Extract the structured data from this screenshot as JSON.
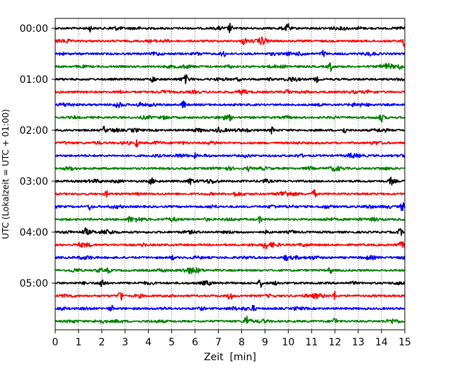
{
  "chart_data": {
    "type": "line",
    "title": "",
    "xlabel": "Zeit  [min]",
    "ylabel": "UTC (Lokalzeit = UTC + 01:00)",
    "x_ticks": [
      0,
      1,
      2,
      3,
      4,
      5,
      6,
      7,
      8,
      9,
      10,
      11,
      12,
      13,
      14,
      15
    ],
    "x_tick_labels": [
      "0",
      "1",
      "2",
      "3",
      "4",
      "5",
      "6",
      "7",
      "8",
      "9",
      "10",
      "11",
      "12",
      "13",
      "14",
      "15"
    ],
    "xlim": [
      0,
      15
    ],
    "y_tick_labels": [
      "00:00",
      "01:00",
      "02:00",
      "03:00",
      "04:00",
      "05:00"
    ],
    "grid": "vertical dotted at each minute",
    "trace_colors": [
      "#000000",
      "#ff0000",
      "#0000ff",
      "#008000"
    ],
    "row_times": [
      "00:00",
      "00:15",
      "00:30",
      "00:45",
      "01:00",
      "01:15",
      "01:30",
      "01:45",
      "02:00",
      "02:15",
      "02:30",
      "02:45",
      "03:00",
      "03:15",
      "03:30",
      "03:45",
      "04:00",
      "04:15",
      "04:30",
      "04:45",
      "05:00",
      "05:15",
      "05:30",
      "05:45"
    ],
    "row_colors": [
      "black",
      "red",
      "blue",
      "green",
      "black",
      "red",
      "blue",
      "green",
      "black",
      "red",
      "blue",
      "green",
      "black",
      "red",
      "blue",
      "green",
      "black",
      "red",
      "blue",
      "green",
      "black",
      "red",
      "blue",
      "green"
    ],
    "events": [
      {
        "row": 0,
        "x": 1.5,
        "a": 0.6
      },
      {
        "row": 0,
        "x": 7.5,
        "a": 1.0
      },
      {
        "row": 0,
        "x": 10.0,
        "a": 0.9
      },
      {
        "row": 1,
        "x": 8.1,
        "a": 0.8
      },
      {
        "row": 1,
        "x": 14.95,
        "a": 1.1
      },
      {
        "row": 2,
        "x": 7.2,
        "a": 0.9
      },
      {
        "row": 2,
        "x": 11.5,
        "a": 0.8
      },
      {
        "row": 3,
        "x": 11.8,
        "a": 1.0
      },
      {
        "row": 3,
        "x": 14.8,
        "a": 0.6
      },
      {
        "row": 4,
        "x": 4.2,
        "a": 0.8
      },
      {
        "row": 4,
        "x": 5.6,
        "a": 0.7
      },
      {
        "row": 4,
        "x": 11.2,
        "a": 0.6
      },
      {
        "row": 5,
        "x": 10.0,
        "a": 0.9
      },
      {
        "row": 6,
        "x": 3.6,
        "a": 0.6
      },
      {
        "row": 6,
        "x": 5.5,
        "a": 0.8
      },
      {
        "row": 7,
        "x": 7.5,
        "a": 0.5
      },
      {
        "row": 7,
        "x": 14.0,
        "a": 0.6
      },
      {
        "row": 8,
        "x": 2.1,
        "a": 0.7
      },
      {
        "row": 8,
        "x": 7.0,
        "a": 0.5
      },
      {
        "row": 8,
        "x": 9.3,
        "a": 0.7
      },
      {
        "row": 8,
        "x": 12.4,
        "a": 0.6
      },
      {
        "row": 9,
        "x": 3.5,
        "a": 0.8
      },
      {
        "row": 10,
        "x": 6.0,
        "a": 0.4
      },
      {
        "row": 11,
        "x": 8.3,
        "a": 0.5
      },
      {
        "row": 12,
        "x": 4.1,
        "a": 0.6
      },
      {
        "row": 12,
        "x": 5.8,
        "a": 0.8
      },
      {
        "row": 12,
        "x": 14.4,
        "a": 0.7
      },
      {
        "row": 13,
        "x": 2.2,
        "a": 0.6
      },
      {
        "row": 13,
        "x": 11.1,
        "a": 0.9
      },
      {
        "row": 14,
        "x": 1.5,
        "a": 0.8
      },
      {
        "row": 14,
        "x": 14.9,
        "a": 1.0
      },
      {
        "row": 15,
        "x": 3.2,
        "a": 0.6
      },
      {
        "row": 15,
        "x": 8.8,
        "a": 0.7
      },
      {
        "row": 16,
        "x": 1.3,
        "a": 0.6
      },
      {
        "row": 16,
        "x": 14.8,
        "a": 0.8
      },
      {
        "row": 17,
        "x": 3.8,
        "a": 0.5
      },
      {
        "row": 17,
        "x": 9.0,
        "a": 0.9
      },
      {
        "row": 18,
        "x": 5.0,
        "a": 0.5
      },
      {
        "row": 18,
        "x": 9.9,
        "a": 0.6
      },
      {
        "row": 19,
        "x": 2.3,
        "a": 0.5
      },
      {
        "row": 19,
        "x": 11.8,
        "a": 0.7
      },
      {
        "row": 20,
        "x": 2.0,
        "a": 1.0
      },
      {
        "row": 20,
        "x": 8.8,
        "a": 0.8
      },
      {
        "row": 21,
        "x": 2.8,
        "a": 1.4
      },
      {
        "row": 21,
        "x": 7.5,
        "a": 1.0
      },
      {
        "row": 21,
        "x": 12.0,
        "a": 0.8
      },
      {
        "row": 22,
        "x": 2.4,
        "a": 0.7
      },
      {
        "row": 22,
        "x": 8.5,
        "a": 0.6
      },
      {
        "row": 23,
        "x": 8.2,
        "a": 1.0
      },
      {
        "row": 23,
        "x": 12.0,
        "a": 0.9
      }
    ]
  }
}
